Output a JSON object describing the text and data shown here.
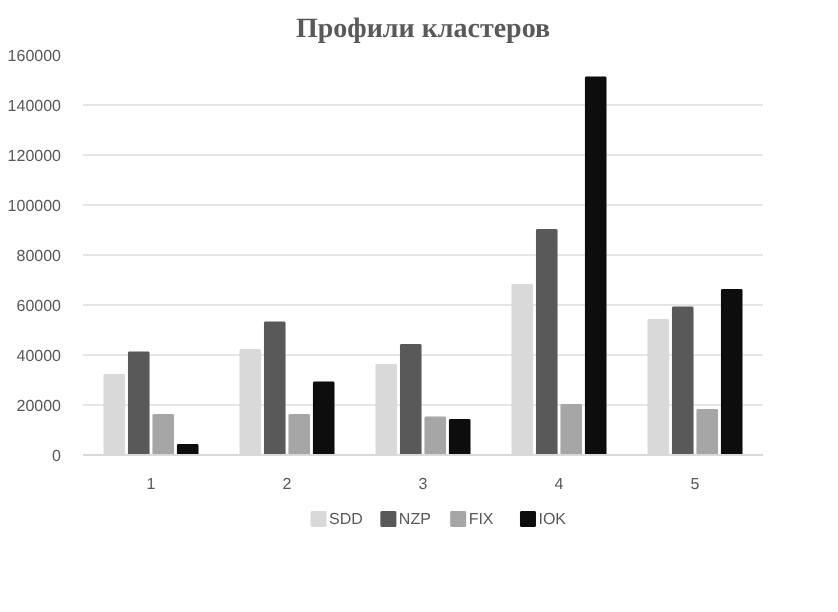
{
  "chart_data": {
    "type": "bar",
    "title": "Профили кластеров",
    "categories": [
      "1",
      "2",
      "3",
      "4",
      "5"
    ],
    "series": [
      {
        "name": "SDD",
        "color": "#d9d9d9",
        "values": [
          32000,
          42000,
          36000,
          68000,
          54000
        ]
      },
      {
        "name": "NZP",
        "color": "#595959",
        "values": [
          41000,
          53000,
          44000,
          90000,
          59000
        ]
      },
      {
        "name": "FIX",
        "color": "#a6a6a6",
        "values": [
          16000,
          16000,
          15000,
          20000,
          18000
        ]
      },
      {
        "name": "IOK",
        "color": "#0d0d0d",
        "values": [
          4000,
          29000,
          14000,
          151000,
          66000
        ]
      }
    ],
    "ylim": [
      0,
      160000
    ],
    "yticks": [
      0,
      20000,
      40000,
      60000,
      80000,
      100000,
      120000,
      140000,
      160000
    ],
    "grid": "y",
    "legend": "bottom"
  }
}
